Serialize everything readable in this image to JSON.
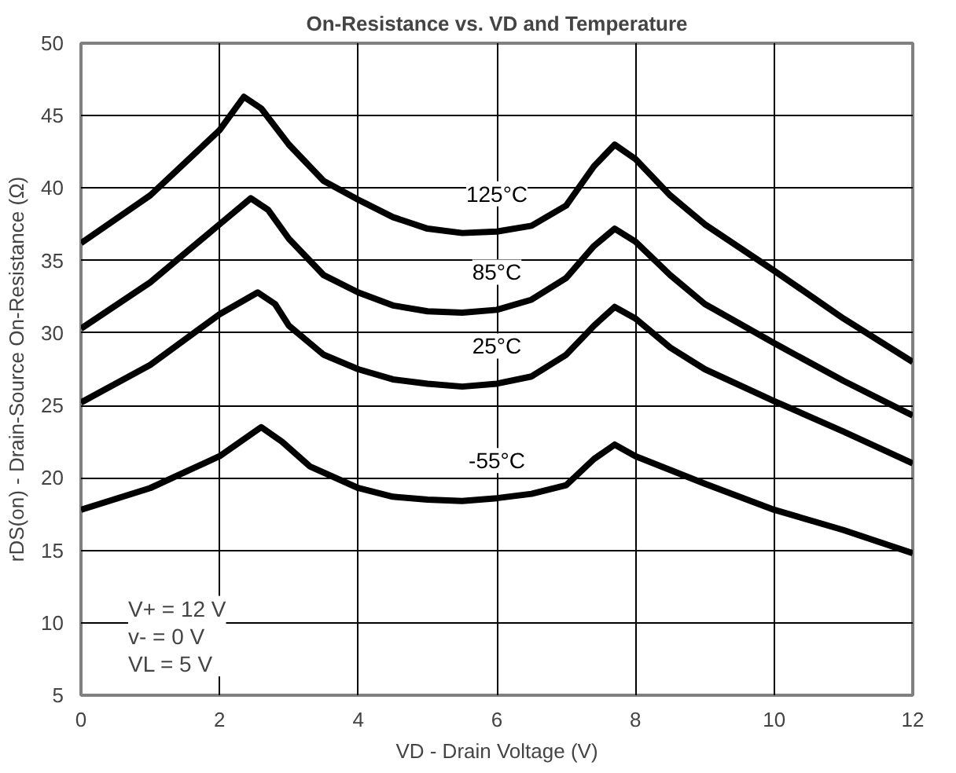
{
  "chart_data": {
    "type": "line",
    "title": "On-Resistance vs. VD and Temperature",
    "xlabel": "VD - Drain Voltage (V)",
    "ylabel": "rDS(on) - Drain-Source On-Resistance (Ω)",
    "xlim": [
      0,
      12
    ],
    "xticks": [
      0,
      2,
      4,
      6,
      8,
      10,
      12
    ],
    "ylim": [
      5,
      50
    ],
    "yticks": [
      5,
      10,
      15,
      20,
      25,
      30,
      35,
      40,
      45,
      50
    ],
    "grid": true,
    "line_style": "solid",
    "marker": "none",
    "series": [
      {
        "name": "125°C",
        "color": "#000000",
        "x": [
          0,
          1,
          2,
          2.35,
          2.6,
          3,
          3.5,
          4,
          4.5,
          5,
          5.5,
          6,
          6.5,
          7,
          7.4,
          7.7,
          8,
          8.5,
          9,
          10,
          11,
          12
        ],
        "values": [
          36.2,
          39.5,
          44,
          46.3,
          45.5,
          43,
          40.5,
          39.2,
          38,
          37.2,
          36.9,
          37,
          37.4,
          38.8,
          41.5,
          43,
          42,
          39.5,
          37.5,
          34.3,
          31,
          28
        ]
      },
      {
        "name": "85°C",
        "color": "#000000",
        "x": [
          0,
          1,
          2,
          2.45,
          2.7,
          3,
          3.5,
          4,
          4.5,
          5,
          5.5,
          6,
          6.5,
          7,
          7.4,
          7.7,
          8,
          8.5,
          9,
          10,
          11,
          12
        ],
        "values": [
          30.3,
          33.5,
          37.5,
          39.3,
          38.5,
          36.5,
          34,
          32.8,
          31.9,
          31.5,
          31.4,
          31.6,
          32.3,
          33.8,
          36,
          37.2,
          36.3,
          34,
          32,
          29.3,
          26.7,
          24.3
        ]
      },
      {
        "name": "25°C",
        "color": "#000000",
        "x": [
          0,
          1,
          2,
          2.55,
          2.8,
          3,
          3.5,
          4,
          4.5,
          5,
          5.5,
          6,
          6.5,
          7,
          7.4,
          7.7,
          8,
          8.5,
          9,
          10,
          11,
          12
        ],
        "values": [
          25.2,
          27.8,
          31.3,
          32.8,
          32,
          30.5,
          28.5,
          27.5,
          26.8,
          26.5,
          26.3,
          26.5,
          27,
          28.5,
          30.5,
          31.8,
          31,
          29,
          27.5,
          25.3,
          23.2,
          21
        ]
      },
      {
        "name": "-55°C",
        "color": "#000000",
        "x": [
          0,
          1,
          2,
          2.6,
          2.9,
          3.3,
          4,
          4.5,
          5,
          5.5,
          6,
          6.5,
          7,
          7.4,
          7.7,
          8,
          9,
          10,
          11,
          12
        ],
        "values": [
          17.8,
          19.3,
          21.5,
          23.5,
          22.5,
          20.8,
          19.3,
          18.7,
          18.5,
          18.4,
          18.6,
          18.9,
          19.5,
          21.3,
          22.3,
          21.5,
          19.6,
          17.8,
          16.4,
          14.8
        ]
      }
    ],
    "annotations": [
      "V+ = 12 V\nv- = 0 V\nVL = 5 V"
    ]
  }
}
